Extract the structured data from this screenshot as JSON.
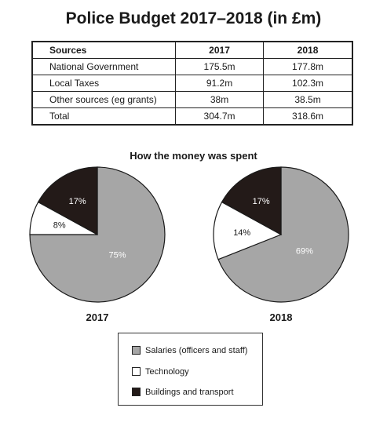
{
  "title": "Police Budget 2017–2018 (in £m)",
  "table": {
    "headers": [
      "Sources",
      "2017",
      "2018"
    ],
    "rows": [
      [
        "National Government",
        "175.5m",
        "177.8m"
      ],
      [
        "Local Taxes",
        "91.2m",
        "102.3m"
      ],
      [
        "Other sources (eg grants)",
        "38m",
        "38.5m"
      ],
      [
        "Total",
        "304.7m",
        "318.6m"
      ]
    ]
  },
  "subtitle": "How the money was spent",
  "colors": {
    "salaries": "#a6a6a6",
    "technology": "#ffffff",
    "buildings": "#231a18"
  },
  "chart_data": {
    "type": "pie",
    "title": "How the money was spent",
    "categories": [
      "Salaries (officers and staff)",
      "Technology",
      "Buildings and transport"
    ],
    "pies": [
      {
        "name": "2017",
        "values": [
          75,
          8,
          17
        ],
        "labels": [
          "75%",
          "8%",
          "17%"
        ]
      },
      {
        "name": "2018",
        "values": [
          69,
          14,
          17
        ],
        "labels": [
          "69%",
          "14%",
          "17%"
        ]
      }
    ],
    "legend": "bottom"
  }
}
